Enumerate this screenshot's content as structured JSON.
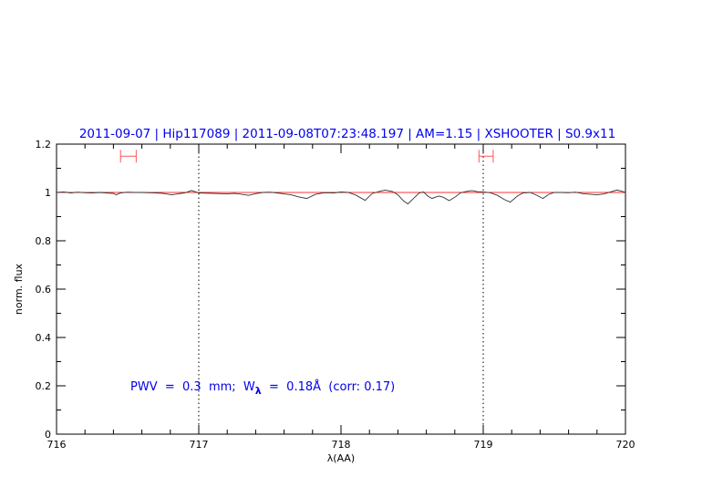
{
  "chart_data": {
    "type": "line",
    "title": "2011-09-07 | Hip117089 | 2011-09-08T07:23:48.197 | AM=1.15 | XSHOOTER | S0.9x11",
    "xlabel": "λ(AA)",
    "ylabel": "norm. flux",
    "xlim": [
      716,
      720
    ],
    "ylim": [
      0,
      1.2
    ],
    "xticks": [
      716,
      717,
      718,
      719,
      720
    ],
    "xtick_labels": [
      "716",
      "717",
      "718",
      "719",
      "720"
    ],
    "yticks": [
      0,
      0.2,
      0.4,
      0.6,
      0.8,
      1,
      1.2
    ],
    "ytick_labels": [
      "0",
      "0.2",
      "0.4",
      "0.6",
      "0.8",
      "1",
      "1.2"
    ],
    "grid": false,
    "vertical_dotted_lines": [
      717,
      719
    ],
    "reference_line": {
      "y": 1.0,
      "color": "#ff3333"
    },
    "annotation": {
      "pre": "PWV  =  0.3  mm;  W",
      "sub": "λ",
      "post": "  =  0.18Å  (corr: 0.17)"
    },
    "range_markers": [
      {
        "x0": 716.45,
        "x1": 716.56,
        "y": 1.15
      },
      {
        "x0": 718.97,
        "x1": 719.07,
        "y": 1.15
      }
    ],
    "colors": {
      "text": "#0000ee",
      "spectrum": "#333333",
      "marker": "#ff5555",
      "axes": "#000000"
    },
    "series": [
      {
        "x": [
          716.0,
          716.05,
          716.1,
          716.15,
          716.2,
          716.25,
          716.3,
          716.35,
          716.4,
          716.42,
          716.45,
          716.5,
          716.55,
          716.6,
          716.65,
          716.7,
          716.75,
          716.81,
          716.85,
          716.9,
          716.95,
          717.0,
          717.05,
          717.1,
          717.15,
          717.2,
          717.25,
          717.3,
          717.35,
          717.4,
          717.45,
          717.5,
          717.55,
          717.6,
          717.65,
          717.7,
          717.76,
          717.82,
          717.88,
          717.95,
          718.0,
          718.05,
          718.1,
          718.17,
          718.22,
          718.28,
          718.31,
          718.36,
          718.4,
          718.44,
          718.47,
          718.51,
          718.55,
          718.58,
          718.61,
          718.64,
          718.67,
          718.69,
          718.72,
          718.76,
          718.8,
          718.84,
          718.88,
          718.92,
          718.96,
          719.0,
          719.05,
          719.1,
          719.15,
          719.19,
          719.24,
          719.28,
          719.33,
          719.37,
          719.42,
          719.46,
          719.5,
          719.55,
          719.6,
          719.65,
          719.7,
          719.75,
          719.8,
          719.85,
          719.9,
          719.94,
          719.98,
          720.0
        ],
        "y": [
          1.0,
          1.002,
          0.998,
          1.001,
          0.999,
          0.998,
          1.0,
          0.998,
          0.996,
          0.99,
          0.998,
          1.001,
          1.0,
          1.0,
          0.999,
          0.998,
          0.996,
          0.99,
          0.994,
          0.998,
          1.008,
          0.998,
          0.997,
          0.996,
          0.995,
          0.994,
          0.996,
          0.993,
          0.988,
          0.995,
          1.0,
          1.001,
          0.998,
          0.994,
          0.99,
          0.982,
          0.975,
          0.992,
          0.999,
          0.998,
          1.002,
          1.0,
          0.99,
          0.967,
          0.996,
          1.006,
          1.01,
          1.004,
          0.99,
          0.965,
          0.953,
          0.975,
          0.998,
          1.002,
          0.985,
          0.975,
          0.982,
          0.985,
          0.98,
          0.966,
          0.98,
          0.998,
          1.004,
          1.008,
          1.003,
          1.002,
          0.999,
          0.988,
          0.97,
          0.96,
          0.985,
          0.998,
          1.0,
          0.99,
          0.975,
          0.992,
          1.0,
          1.0,
          0.999,
          1.001,
          0.995,
          0.993,
          0.99,
          0.994,
          1.003,
          1.01,
          1.004,
          1.0
        ]
      }
    ]
  }
}
